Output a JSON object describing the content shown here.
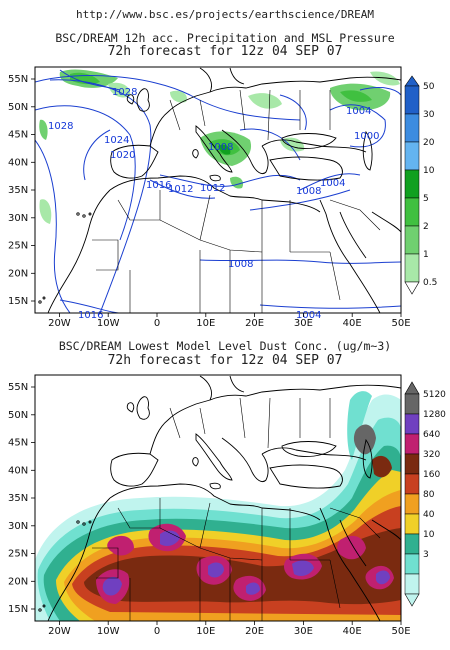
{
  "header_url": "http://www.bsc.es/projects/earthscience/DREAM",
  "top_map": {
    "title_line1": "BSC/DREAM 12h acc. Precipitation and MSL Pressure",
    "title_line2": "72h forecast for 12z 04 SEP 07",
    "colorbar": {
      "labels": [
        "50",
        "30",
        "20",
        "10",
        "5",
        "2",
        "1",
        "0.5"
      ],
      "colors": [
        "#2060c8",
        "#3c8ce0",
        "#64b4f0",
        "#10a020",
        "#40c040",
        "#70d070",
        "#a8e8a8"
      ]
    },
    "isobars": [
      "1028",
      "1024",
      "1020",
      "1016",
      "1012",
      "1012",
      "1008",
      "1008",
      "1008",
      "1004",
      "1004",
      "1004",
      "1000",
      "1016"
    ]
  },
  "bottom_map": {
    "title_line1": "BSC/DREAM Lowest Model Level Dust Conc. (ug/m~3)",
    "title_line2": "72h forecast for 12z 04 SEP 07",
    "colorbar": {
      "labels": [
        "5120",
        "1280",
        "640",
        "320",
        "160",
        "80",
        "40",
        "10",
        "3"
      ],
      "colors": [
        "#666666",
        "#7040c0",
        "#c02070",
        "#7a2a10",
        "#c84020",
        "#f0a020",
        "#f0d028",
        "#30b090",
        "#70e0d0",
        "#c0f4ee"
      ]
    }
  },
  "axes": {
    "lat_labels": [
      "55N",
      "50N",
      "45N",
      "40N",
      "35N",
      "30N",
      "25N",
      "20N",
      "15N"
    ],
    "lon_labels": [
      "20W",
      "10W",
      "0",
      "10E",
      "20E",
      "30E",
      "40E",
      "50E"
    ]
  }
}
